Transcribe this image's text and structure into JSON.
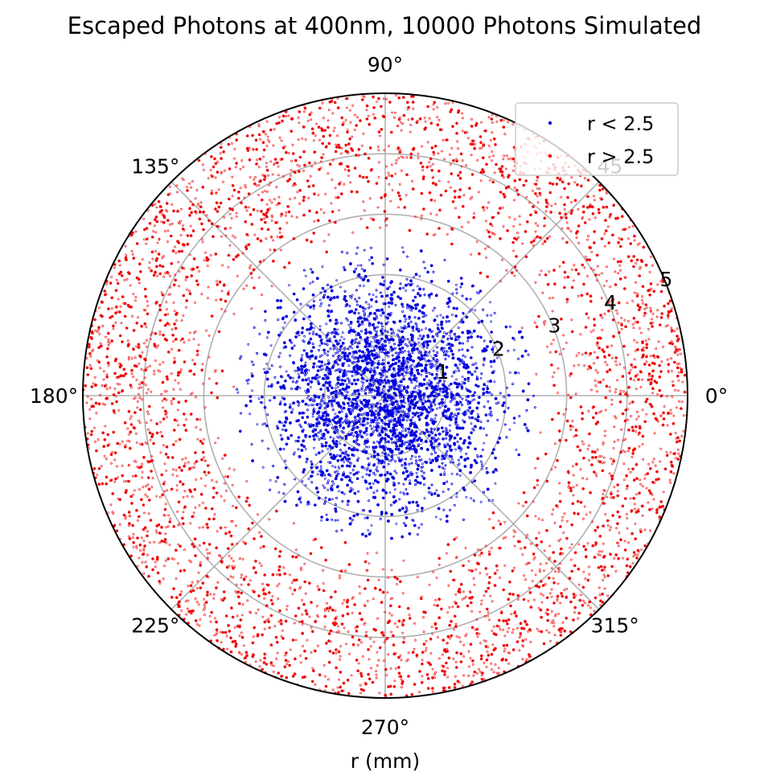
{
  "chart_data": {
    "type": "scatter",
    "coordinate_system": "polar",
    "title": "Escaped Photons at 400nm, 10000 Photons Simulated",
    "xlabel": "r (mm)",
    "ylabel": "",
    "rlim": [
      0,
      5
    ],
    "radial_ticks": [
      "1",
      "2",
      "3",
      "4",
      "5"
    ],
    "angle_ticks": [
      "0°",
      "45°",
      "90°",
      "135°",
      "180°",
      "225°",
      "270°",
      "315°"
    ],
    "grid": true,
    "legend_position": "top-right",
    "photon_count": 10000,
    "series": [
      {
        "name": "r < 2.5",
        "color": "#0000dd",
        "r_range": [
          0,
          2.5
        ],
        "distribution": "dense near centre, thinning toward r = 2.5",
        "sample_points": [
          [
            0.3,
            15
          ],
          [
            0.8,
            120
          ],
          [
            1.2,
            200
          ],
          [
            1.6,
            300
          ],
          [
            2.1,
            60
          ],
          [
            2.4,
            250
          ]
        ]
      },
      {
        "name": "r > 2.5",
        "color": "#ee0000",
        "r_range": [
          2.5,
          5
        ],
        "distribution": "roughly uniform density across the outer annulus",
        "sample_points": [
          [
            2.7,
            45
          ],
          [
            3.2,
            150
          ],
          [
            3.8,
            230
          ],
          [
            4.3,
            320
          ],
          [
            4.8,
            100
          ],
          [
            4.9,
            280
          ]
        ]
      }
    ]
  }
}
